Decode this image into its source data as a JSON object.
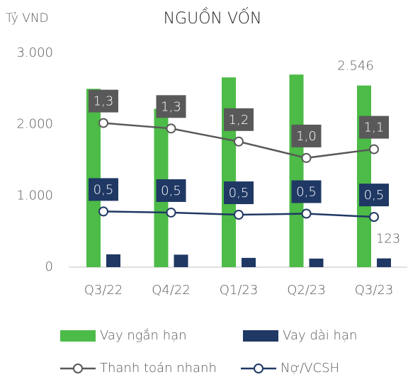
{
  "chart_data": {
    "type": "bar_line",
    "title": "NGUỒN VỐN",
    "y_axis_label": "Tỷ VND",
    "categories": [
      "Q3/22",
      "Q4/22",
      "Q1/23",
      "Q2/23",
      "Q3/23"
    ],
    "ylim": [
      0,
      3000
    ],
    "yticks": [
      0,
      {
        "value": 1000,
        "label": "1.000"
      },
      {
        "value": 2000,
        "label": "2.000"
      },
      {
        "value": 3000,
        "label": "3.000"
      }
    ],
    "y2lim": [
      0,
      1.96
    ],
    "series": [
      {
        "name": "Vay ngắn hạn",
        "kind": "bar",
        "color": "#4cbb47",
        "values": [
          2500,
          2220,
          2660,
          2700,
          2546
        ],
        "value_labels": [
          null,
          null,
          null,
          null,
          "2.546"
        ]
      },
      {
        "name": "Vay dài hạn",
        "kind": "bar",
        "color": "#1f3864",
        "values": [
          180,
          175,
          130,
          120,
          123
        ],
        "value_labels": [
          null,
          null,
          null,
          null,
          "123"
        ]
      },
      {
        "name": "Thanh toán nhanh",
        "kind": "line",
        "axis": "y2",
        "color": "#595959",
        "values": [
          1.32,
          1.27,
          1.15,
          1.0,
          1.08
        ],
        "value_labels": [
          "1,3",
          "1,3",
          "1,2",
          "1,0",
          "1,1"
        ]
      },
      {
        "name": "Nợ/VCSH",
        "kind": "line",
        "axis": "y2",
        "color": "#1f3864",
        "values": [
          0.51,
          0.5,
          0.48,
          0.49,
          0.46
        ],
        "value_labels": [
          "0,5",
          "0,5",
          "0,5",
          "0,5",
          "0,5"
        ]
      }
    ]
  }
}
